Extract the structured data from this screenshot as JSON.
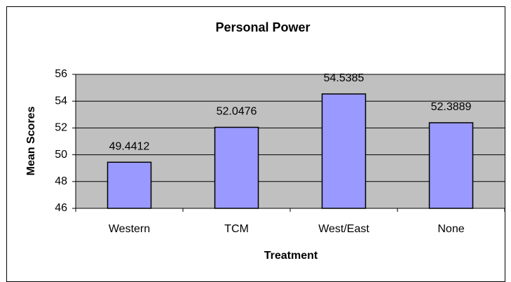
{
  "chart_data": {
    "type": "bar",
    "title": "Personal Power",
    "x_label": "Treatment",
    "y_label": "Mean Scores",
    "categories": [
      "Western",
      "TCM",
      "West/East",
      "None"
    ],
    "values": [
      49.4412,
      52.0476,
      54.5385,
      52.3889
    ],
    "color": "#9999ff",
    "ylim": [
      46,
      56
    ],
    "yticks": [
      46,
      48,
      50,
      52,
      54,
      56
    ],
    "grid": true
  }
}
